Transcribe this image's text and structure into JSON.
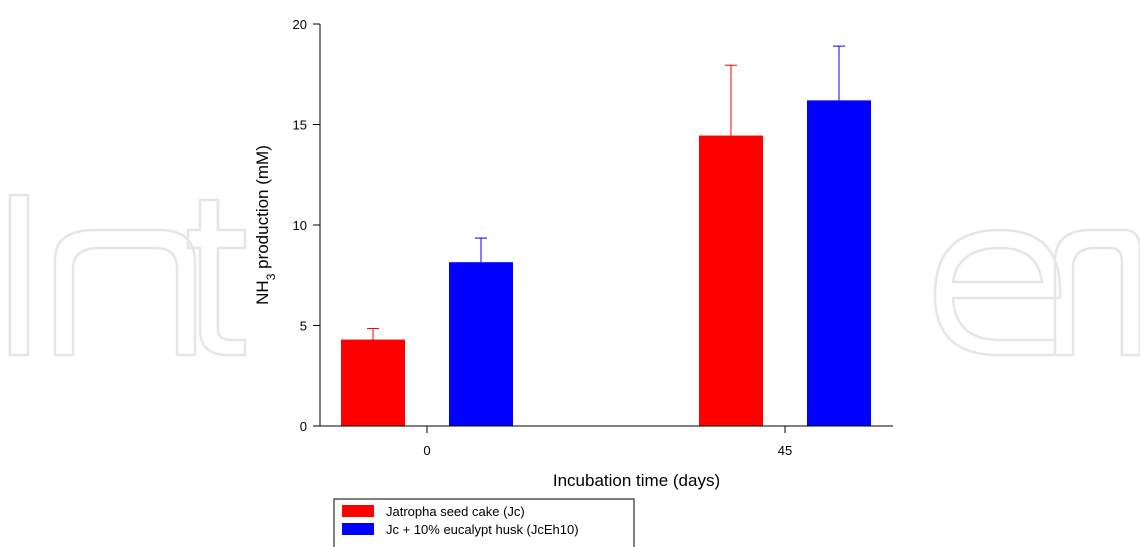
{
  "chart_data": {
    "type": "bar",
    "categories": [
      "0",
      "45"
    ],
    "series": [
      {
        "name": "Jatropha seed cake (Jc)",
        "color": "#ff0000",
        "values": [
          4.3,
          14.45
        ],
        "errors": [
          0.55,
          3.5
        ]
      },
      {
        "name": "Jc + 10% eucalypt husk (JcEh10)",
        "color": "#0000ff",
        "values": [
          8.15,
          16.2
        ],
        "errors": [
          1.2,
          2.7
        ]
      }
    ],
    "xlabel": "Incubation time (days)",
    "ylabel": {
      "base": "NH",
      "sub": "3",
      "rest": " production (mM)"
    },
    "ylim": [
      0,
      20
    ],
    "yticks": [
      0,
      5,
      10,
      15,
      20
    ],
    "grid": false,
    "legend_position": "bottom-left, below plot"
  }
}
